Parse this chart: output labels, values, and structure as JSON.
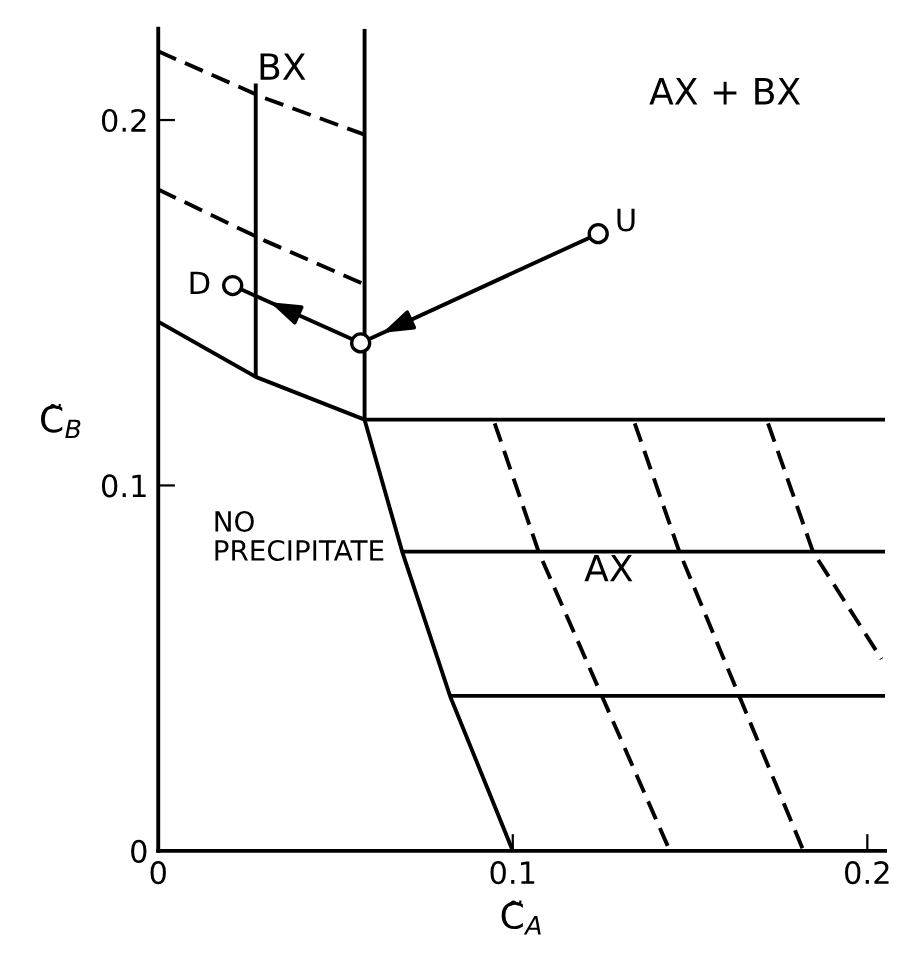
{
  "chart_data": {
    "type": "line",
    "xlabel": "C̃$_{A}$",
    "ylabel": "C̃$_{B}$",
    "xlim": [
      0,
      0.205
    ],
    "ylim": [
      0,
      0.225
    ],
    "xticks": [
      0,
      0.1,
      0.2
    ],
    "yticks": [
      0,
      0.1,
      0.2
    ],
    "grid": false,
    "legend": false,
    "series": [
      {
        "color": "#000000",
        "x": [
          0,
          0.0275,
          0.0582,
          0.205
        ],
        "values": [
          0.1448,
          0.1297,
          0.118,
          0.118
        ]
      },
      {
        "color": "#000000",
        "x": [
          0.0582,
          0.0582,
          0.0688,
          0.0823,
          0.1
        ],
        "values": [
          0.225,
          0.118,
          0.0819,
          0.0424,
          0
        ]
      },
      {
        "color": "#000000",
        "x": [
          0.0275,
          0.0275
        ],
        "values": [
          0.1297,
          0.21
        ]
      },
      {
        "color": "#000000",
        "line_style": "dashed",
        "x": [
          0,
          0.03,
          0.0582
        ],
        "values": [
          0.2188,
          0.206,
          0.196
        ]
      },
      {
        "color": "#000000",
        "line_style": "dashed",
        "x": [
          0,
          0.03,
          0.0582
        ],
        "values": [
          0.181,
          0.167,
          0.155
        ]
      },
      {
        "color": "#000000",
        "x": [
          0.0688,
          0.205
        ],
        "values": [
          0.0819,
          0.0819
        ]
      },
      {
        "color": "#000000",
        "x": [
          0.0823,
          0.205
        ],
        "values": [
          0.0424,
          0.0424
        ]
      },
      {
        "color": "#000000",
        "line_style": "dashed",
        "x": [
          0.0949,
          0.1073,
          0.1443
        ],
        "values": [
          0.117,
          0.0818,
          0
        ]
      },
      {
        "color": "#000000",
        "line_style": "dashed",
        "x": [
          0.1344,
          0.147,
          0.182
        ],
        "values": [
          0.117,
          0.0818,
          0
        ]
      },
      {
        "color": "#000000",
        "line_style": "dashed",
        "x": [
          0.172,
          0.1847,
          0.204
        ],
        "values": [
          0.117,
          0.0818,
          0.0525
        ]
      },
      {
        "color": "#000000",
        "x": [
          0.1241,
          0.0571
        ],
        "values": [
          0.1689,
          0.139
        ]
      },
      {
        "color": "#000000",
        "x": [
          0.0571,
          0.021
        ],
        "values": [
          0.139,
          0.1547
        ]
      },
      {
        "type": "scatter",
        "marker": "circle",
        "color": "#000000",
        "x": [
          0.021,
          0.0571,
          0.1241
        ],
        "values": [
          0.1547,
          0.139,
          0.1689
        ]
      }
    ],
    "annotations": [
      "BX",
      "AX + BX",
      "NO\nPRECIPITATE",
      "AX",
      {
        "text": "D",
        "x": 0.021,
        "y": 0.1547
      },
      {
        "text": "U",
        "x": 0.1241,
        "y": 0.1689
      }
    ]
  }
}
